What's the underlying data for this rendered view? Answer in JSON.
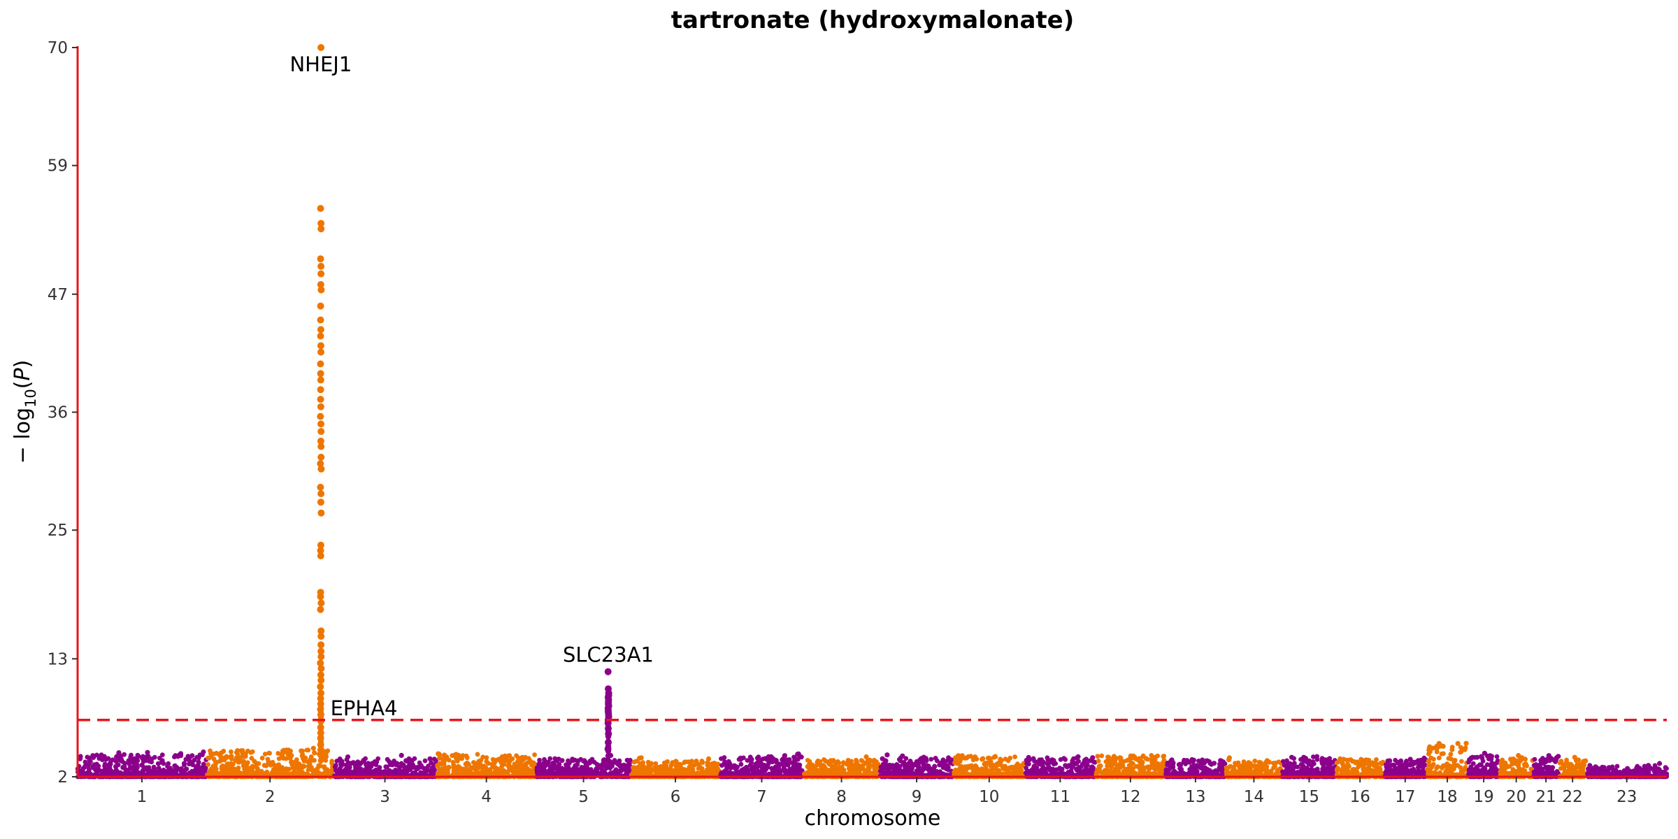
{
  "chart_data": {
    "type": "scatter",
    "subtype": "manhattan",
    "title": "tartronate (hydroxymalonate)",
    "xlabel": "chromosome",
    "ylabel": "-log10(P)",
    "ylim": [
      2,
      70
    ],
    "yticks": [
      2,
      13,
      25,
      36,
      47,
      59,
      70
    ],
    "significance_line": 7.3,
    "colors": {
      "odd_chromosome": "#8B008B",
      "even_chromosome": "#EE7600",
      "axis": "#E8161A",
      "threshold": "#E8161A"
    },
    "chromosomes": [
      {
        "label": "1",
        "length": 249,
        "baseline_max": 4.4
      },
      {
        "label": "2",
        "length": 243,
        "baseline_max": 4.8
      },
      {
        "label": "3",
        "length": 198,
        "baseline_max": 4.0
      },
      {
        "label": "4",
        "length": 191,
        "baseline_max": 4.4
      },
      {
        "label": "5",
        "length": 181,
        "baseline_max": 4.0
      },
      {
        "label": "6",
        "length": 171,
        "baseline_max": 3.8
      },
      {
        "label": "7",
        "length": 159,
        "baseline_max": 4.2
      },
      {
        "label": "8",
        "length": 146,
        "baseline_max": 3.9
      },
      {
        "label": "9",
        "length": 141,
        "baseline_max": 4.1
      },
      {
        "label": "10",
        "length": 136,
        "baseline_max": 4.3
      },
      {
        "label": "11",
        "length": 135,
        "baseline_max": 4.1
      },
      {
        "label": "12",
        "length": 133,
        "baseline_max": 4.3
      },
      {
        "label": "13",
        "length": 115,
        "baseline_max": 3.9
      },
      {
        "label": "14",
        "length": 107,
        "baseline_max": 3.8
      },
      {
        "label": "15",
        "length": 103,
        "baseline_max": 4.2
      },
      {
        "label": "16",
        "length": 90,
        "baseline_max": 4.0
      },
      {
        "label": "17",
        "length": 81,
        "baseline_max": 3.9
      },
      {
        "label": "18",
        "length": 78,
        "baseline_max": 5.2
      },
      {
        "label": "19",
        "length": 59,
        "baseline_max": 4.3
      },
      {
        "label": "20",
        "length": 63,
        "baseline_max": 4.0
      },
      {
        "label": "21",
        "length": 48,
        "baseline_max": 4.1
      },
      {
        "label": "22",
        "length": 51,
        "baseline_max": 3.9
      },
      {
        "label": "23",
        "length": 155,
        "baseline_max": 3.4
      }
    ],
    "peaks": [
      {
        "chromosome": "2",
        "position": 219.9,
        "values": [
          70,
          55.0,
          53.6,
          53.1,
          50.3,
          49.6,
          48.9,
          47.9,
          47.4,
          45.9,
          44.6,
          43.7,
          43.1,
          42.2,
          41.6,
          40.5,
          39.6,
          39.0,
          38.1,
          37.2,
          36.5,
          35.6,
          34.9,
          34.2,
          33.3,
          32.8,
          31.8,
          31.2,
          30.7,
          29.0,
          28.4,
          27.6,
          26.6,
          23.6,
          23.1,
          22.6,
          19.2,
          18.8,
          18.2,
          17.6,
          15.6,
          15.1,
          14.3,
          13.7,
          13.2,
          12.6,
          12.1,
          11.5,
          11.0,
          10.4,
          9.8,
          9.3,
          8.8,
          8.3,
          7.8,
          7.2,
          6.6,
          6.1,
          5.6,
          5.0,
          4.5
        ]
      },
      {
        "chromosome": "5",
        "position": 138.5,
        "values": [
          11.8,
          10.2,
          9.8,
          9.6,
          9.4,
          9.2,
          9.0,
          8.8,
          8.6,
          8.4,
          8.2,
          8.0,
          7.8,
          7.6,
          7.3,
          7.0,
          6.5,
          6.0,
          5.2,
          4.6
        ]
      }
    ],
    "annotations": [
      {
        "text": "NHEJ1",
        "chromosome": "2",
        "position": 219.9,
        "y": 70
      },
      {
        "text": "EPHA4",
        "chromosome": "2",
        "position": 222.3,
        "y": 8.4
      },
      {
        "text": "SLC23A1",
        "chromosome": "5",
        "position": 138.5,
        "y": 11.8
      }
    ]
  }
}
